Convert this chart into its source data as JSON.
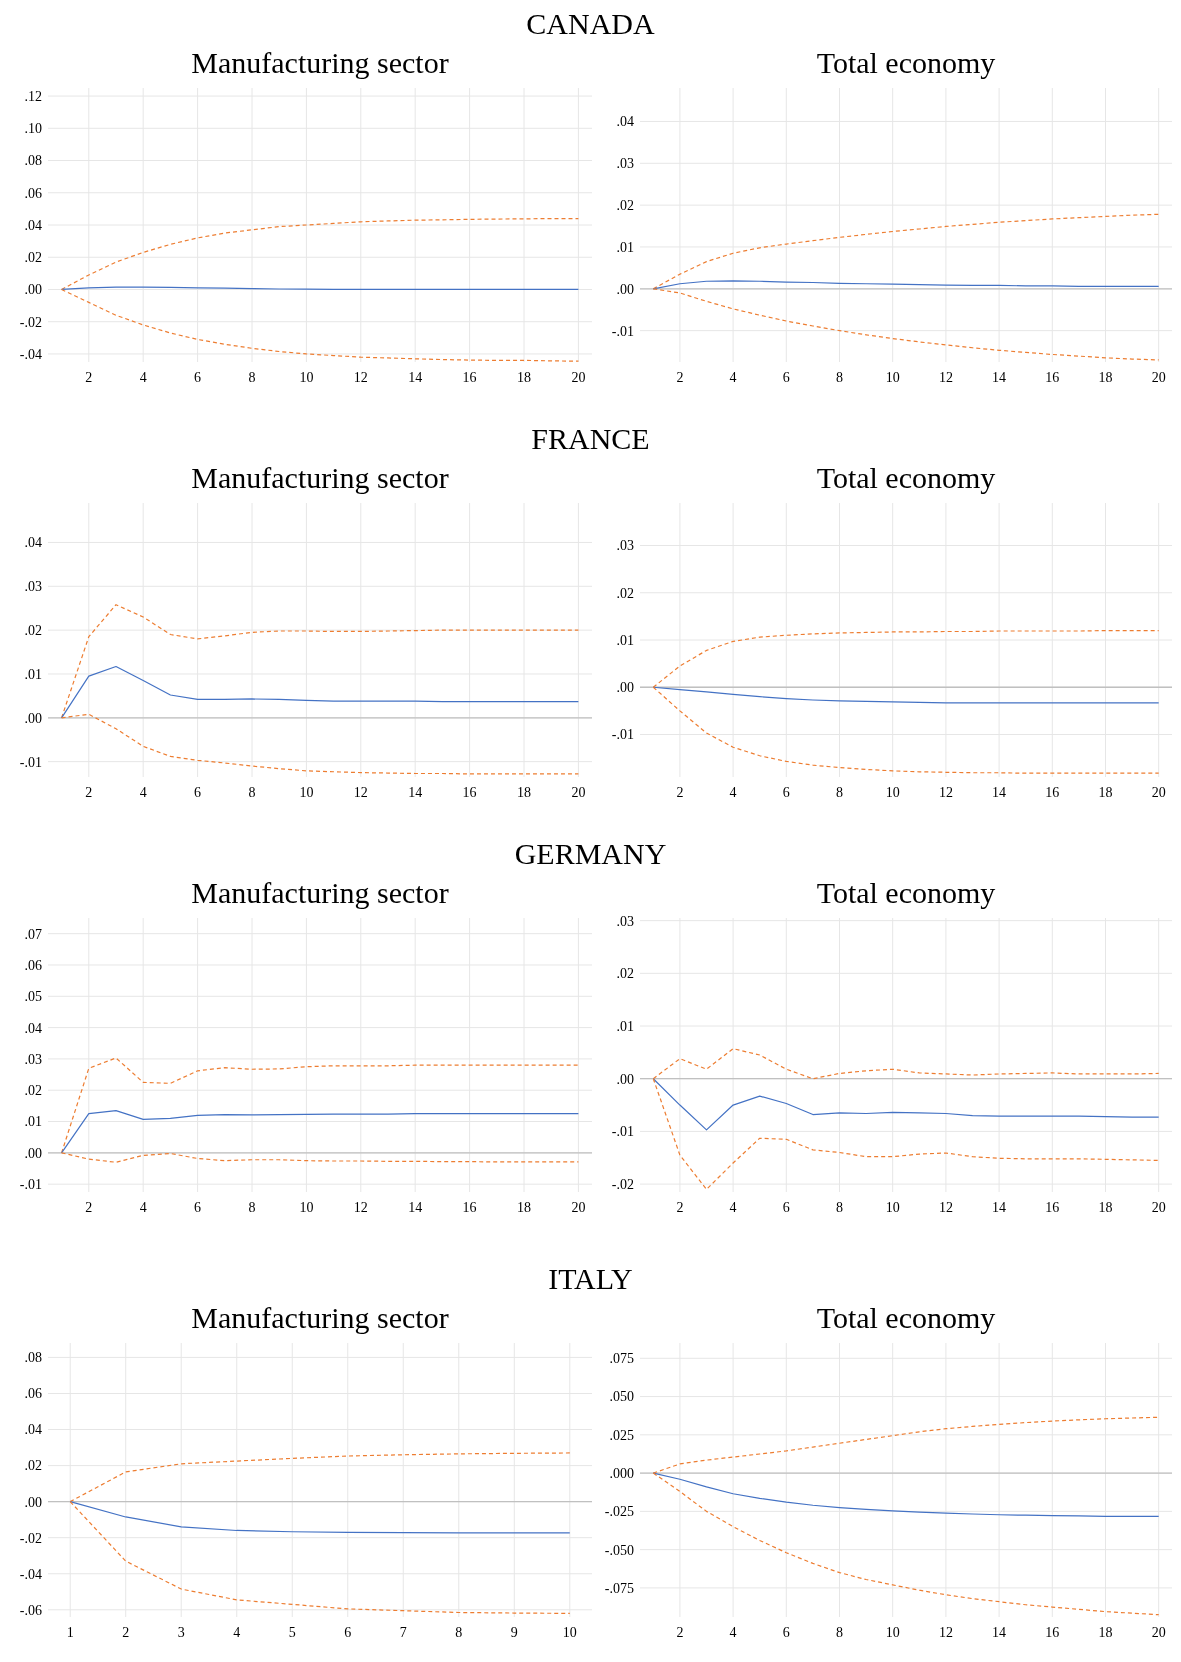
{
  "chart_data": [
    {
      "type": "line",
      "title": "Manufacturing sector",
      "annotations": [
        "CANADA"
      ],
      "x": [
        1,
        2,
        3,
        4,
        5,
        6,
        7,
        8,
        9,
        10,
        11,
        12,
        13,
        14,
        15,
        16,
        17,
        18,
        19,
        20
      ],
      "xlim": [
        0.5,
        20.5
      ],
      "xticks": [
        2,
        4,
        6,
        8,
        10,
        12,
        14,
        16,
        18,
        20
      ],
      "ylim": [
        -0.045,
        0.125
      ],
      "yticks": [
        {
          "value": -0.04,
          "label": "-.04"
        },
        {
          "value": -0.02,
          "label": "-.02"
        },
        {
          "value": 0,
          "label": ".00"
        },
        {
          "value": 0.02,
          "label": ".02"
        },
        {
          "value": 0.04,
          "label": ".04"
        },
        {
          "value": 0.06,
          "label": ".06"
        },
        {
          "value": 0.08,
          "label": ".08"
        },
        {
          "value": 0.1,
          "label": ".10"
        },
        {
          "value": 0.12,
          "label": ".12"
        }
      ],
      "grid": true,
      "series": [
        {
          "color": "#ed7d31",
          "line_style": "dashed",
          "values": [
            0,
            0.009,
            0.017,
            0.023,
            0.028,
            0.032,
            0.035,
            0.037,
            0.039,
            0.04,
            0.041,
            0.042,
            0.0425,
            0.043,
            0.0432,
            0.0435,
            0.0437,
            0.0438,
            0.044,
            0.044
          ]
        },
        {
          "color": "#4472c4",
          "line_style": "solid",
          "values": [
            0,
            0.001,
            0.0015,
            0.0015,
            0.0013,
            0.001,
            0.0008,
            0.0005,
            0.0003,
            0.0002,
            0.0001,
            0,
            0,
            0,
            0,
            0,
            0,
            0,
            0,
            0
          ]
        },
        {
          "color": "#ed7d31",
          "line_style": "dashed",
          "values": [
            0,
            -0.008,
            -0.016,
            -0.022,
            -0.027,
            -0.031,
            -0.034,
            -0.0365,
            -0.0385,
            -0.04,
            -0.041,
            -0.042,
            -0.0425,
            -0.043,
            -0.0435,
            -0.0438,
            -0.044,
            -0.044,
            -0.0443,
            -0.0445
          ]
        }
      ]
    },
    {
      "type": "line",
      "title": "Total economy",
      "x": [
        1,
        2,
        3,
        4,
        5,
        6,
        7,
        8,
        9,
        10,
        11,
        12,
        13,
        14,
        15,
        16,
        17,
        18,
        19,
        20
      ],
      "xlim": [
        0.5,
        20.5
      ],
      "xticks": [
        2,
        4,
        6,
        8,
        10,
        12,
        14,
        16,
        18,
        20
      ],
      "ylim": [
        -0.0175,
        0.048
      ],
      "yticks": [
        {
          "value": -0.01,
          "label": "-.01"
        },
        {
          "value": 0,
          "label": ".00"
        },
        {
          "value": 0.01,
          "label": ".01"
        },
        {
          "value": 0.02,
          "label": ".02"
        },
        {
          "value": 0.03,
          "label": ".03"
        },
        {
          "value": 0.04,
          "label": ".04"
        }
      ],
      "grid": true,
      "ref_lines": [
        {
          "axis": "y",
          "value": 0,
          "color": "#c0c0c0"
        }
      ],
      "series": [
        {
          "color": "#ed7d31",
          "line_style": "dashed",
          "values": [
            0,
            0.0035,
            0.0065,
            0.0085,
            0.0098,
            0.0107,
            0.0115,
            0.0123,
            0.013,
            0.0137,
            0.0143,
            0.0149,
            0.0154,
            0.0159,
            0.0163,
            0.0167,
            0.017,
            0.0173,
            0.0176,
            0.0178
          ]
        },
        {
          "color": "#4472c4",
          "line_style": "solid",
          "values": [
            0,
            0.0012,
            0.0018,
            0.0019,
            0.0018,
            0.0016,
            0.0015,
            0.0013,
            0.0012,
            0.0011,
            0.001,
            0.0009,
            0.0008,
            0.0008,
            0.0007,
            0.0007,
            0.0006,
            0.0006,
            0.0006,
            0.0006
          ]
        },
        {
          "color": "#ed7d31",
          "line_style": "dashed",
          "values": [
            0,
            -0.001,
            -0.003,
            -0.0048,
            -0.0063,
            -0.0077,
            -0.0089,
            -0.01,
            -0.011,
            -0.0119,
            -0.0127,
            -0.0134,
            -0.0141,
            -0.0147,
            -0.0152,
            -0.0157,
            -0.0161,
            -0.0165,
            -0.0168,
            -0.017
          ]
        }
      ]
    },
    {
      "type": "line",
      "title": "Manufacturing sector",
      "annotations": [
        "FRANCE"
      ],
      "x": [
        1,
        2,
        3,
        4,
        5,
        6,
        7,
        8,
        9,
        10,
        11,
        12,
        13,
        14,
        15,
        16,
        17,
        18,
        19,
        20
      ],
      "xlim": [
        0.5,
        20.5
      ],
      "xticks": [
        2,
        4,
        6,
        8,
        10,
        12,
        14,
        16,
        18,
        20
      ],
      "ylim": [
        -0.0135,
        0.049
      ],
      "yticks": [
        {
          "value": -0.01,
          "label": "-.01"
        },
        {
          "value": 0,
          "label": ".00"
        },
        {
          "value": 0.01,
          "label": ".01"
        },
        {
          "value": 0.02,
          "label": ".02"
        },
        {
          "value": 0.03,
          "label": ".03"
        },
        {
          "value": 0.04,
          "label": ".04"
        }
      ],
      "grid": true,
      "ref_lines": [
        {
          "axis": "y",
          "value": 0,
          "color": "#c0c0c0"
        }
      ],
      "series": [
        {
          "color": "#ed7d31",
          "line_style": "dashed",
          "values": [
            0,
            0.0185,
            0.0258,
            0.023,
            0.019,
            0.018,
            0.0187,
            0.0195,
            0.0198,
            0.0198,
            0.0197,
            0.0197,
            0.0198,
            0.0199,
            0.02,
            0.02,
            0.02,
            0.02,
            0.02,
            0.02
          ]
        },
        {
          "color": "#4472c4",
          "line_style": "solid",
          "values": [
            0,
            0.0095,
            0.0117,
            0.0085,
            0.0052,
            0.0042,
            0.0042,
            0.0043,
            0.0042,
            0.004,
            0.0038,
            0.0038,
            0.0038,
            0.0038,
            0.0037,
            0.0037,
            0.0037,
            0.0037,
            0.0037,
            0.0037
          ]
        },
        {
          "color": "#ed7d31",
          "line_style": "dashed",
          "values": [
            0,
            0.0008,
            -0.0025,
            -0.0065,
            -0.0088,
            -0.0097,
            -0.0103,
            -0.011,
            -0.0116,
            -0.0121,
            -0.0123,
            -0.0125,
            -0.0126,
            -0.0127,
            -0.0127,
            -0.0128,
            -0.0128,
            -0.0128,
            -0.0128,
            -0.0128
          ]
        }
      ]
    },
    {
      "type": "line",
      "title": "Total economy",
      "x": [
        1,
        2,
        3,
        4,
        5,
        6,
        7,
        8,
        9,
        10,
        11,
        12,
        13,
        14,
        15,
        16,
        17,
        18,
        19,
        20
      ],
      "xlim": [
        0.5,
        20.5
      ],
      "xticks": [
        2,
        4,
        6,
        8,
        10,
        12,
        14,
        16,
        18,
        20
      ],
      "ylim": [
        -0.019,
        0.039
      ],
      "yticks": [
        {
          "value": -0.01,
          "label": "-.01"
        },
        {
          "value": 0,
          "label": ".00"
        },
        {
          "value": 0.01,
          "label": ".01"
        },
        {
          "value": 0.02,
          "label": ".02"
        },
        {
          "value": 0.03,
          "label": ".03"
        }
      ],
      "grid": true,
      "ref_lines": [
        {
          "axis": "y",
          "value": 0,
          "color": "#c0c0c0"
        }
      ],
      "series": [
        {
          "color": "#ed7d31",
          "line_style": "dashed",
          "values": [
            0,
            0.0045,
            0.0078,
            0.0097,
            0.0106,
            0.011,
            0.0113,
            0.0115,
            0.0116,
            0.0117,
            0.0117,
            0.0118,
            0.0118,
            0.0119,
            0.0119,
            0.0119,
            0.0119,
            0.012,
            0.012,
            0.012
          ]
        },
        {
          "color": "#4472c4",
          "line_style": "solid",
          "values": [
            0,
            -0.0005,
            -0.001,
            -0.0015,
            -0.002,
            -0.0024,
            -0.0027,
            -0.0029,
            -0.003,
            -0.0031,
            -0.0032,
            -0.0033,
            -0.0033,
            -0.0033,
            -0.0033,
            -0.0033,
            -0.0033,
            -0.0033,
            -0.0033,
            -0.0033
          ]
        },
        {
          "color": "#ed7d31",
          "line_style": "dashed",
          "values": [
            0,
            -0.005,
            -0.0097,
            -0.0127,
            -0.0145,
            -0.0157,
            -0.0165,
            -0.017,
            -0.0174,
            -0.0177,
            -0.0179,
            -0.018,
            -0.0181,
            -0.0181,
            -0.0182,
            -0.0182,
            -0.0182,
            -0.0182,
            -0.0182,
            -0.0182
          ]
        }
      ]
    },
    {
      "type": "line",
      "title": "Manufacturing sector",
      "annotations": [
        "GERMANY"
      ],
      "x": [
        1,
        2,
        3,
        4,
        5,
        6,
        7,
        8,
        9,
        10,
        11,
        12,
        13,
        14,
        15,
        16,
        17,
        18,
        19,
        20
      ],
      "xlim": [
        0.5,
        20.5
      ],
      "xticks": [
        2,
        4,
        6,
        8,
        10,
        12,
        14,
        16,
        18,
        20
      ],
      "ylim": [
        -0.0125,
        0.075
      ],
      "yticks": [
        {
          "value": -0.01,
          "label": "-.01"
        },
        {
          "value": 0,
          "label": ".00"
        },
        {
          "value": 0.01,
          "label": ".01"
        },
        {
          "value": 0.02,
          "label": ".02"
        },
        {
          "value": 0.03,
          "label": ".03"
        },
        {
          "value": 0.04,
          "label": ".04"
        },
        {
          "value": 0.05,
          "label": ".05"
        },
        {
          "value": 0.06,
          "label": ".06"
        },
        {
          "value": 0.07,
          "label": ".07"
        }
      ],
      "grid": true,
      "ref_lines": [
        {
          "axis": "y",
          "value": 0,
          "color": "#c0c0c0"
        }
      ],
      "series": [
        {
          "color": "#ed7d31",
          "line_style": "dashed",
          "values": [
            0,
            0.027,
            0.0303,
            0.0225,
            0.0222,
            0.0262,
            0.0272,
            0.0267,
            0.0268,
            0.0275,
            0.0278,
            0.0278,
            0.0278,
            0.028,
            0.028,
            0.028,
            0.028,
            0.028,
            0.028,
            0.028
          ]
        },
        {
          "color": "#4472c4",
          "line_style": "solid",
          "values": [
            0,
            0.0125,
            0.0135,
            0.0107,
            0.011,
            0.012,
            0.0122,
            0.0121,
            0.0122,
            0.0123,
            0.0124,
            0.0124,
            0.0124,
            0.0125,
            0.0125,
            0.0125,
            0.0125,
            0.0125,
            0.0125,
            0.0125
          ]
        },
        {
          "color": "#ed7d31",
          "line_style": "dashed",
          "values": [
            0,
            -0.002,
            -0.003,
            -0.0008,
            -0.0002,
            -0.0018,
            -0.0025,
            -0.0022,
            -0.0022,
            -0.0025,
            -0.0026,
            -0.0026,
            -0.0027,
            -0.0027,
            -0.0028,
            -0.0028,
            -0.0029,
            -0.0029,
            -0.0029,
            -0.0029
          ]
        }
      ]
    },
    {
      "type": "line",
      "title": "Total economy",
      "x": [
        1,
        2,
        3,
        4,
        5,
        6,
        7,
        8,
        9,
        10,
        11,
        12,
        13,
        14,
        15,
        16,
        17,
        18,
        19,
        20
      ],
      "xlim": [
        0.5,
        20.5
      ],
      "xticks": [
        2,
        4,
        6,
        8,
        10,
        12,
        14,
        16,
        18,
        20
      ],
      "ylim": [
        -0.0215,
        0.0305
      ],
      "yticks": [
        {
          "value": -0.02,
          "label": "-.02"
        },
        {
          "value": -0.01,
          "label": "-.01"
        },
        {
          "value": 0,
          "label": ".00"
        },
        {
          "value": 0.01,
          "label": ".01"
        },
        {
          "value": 0.02,
          "label": ".02"
        },
        {
          "value": 0.03,
          "label": ".03"
        }
      ],
      "grid": true,
      "ref_lines": [
        {
          "axis": "y",
          "value": 0,
          "color": "#c0c0c0"
        }
      ],
      "series": [
        {
          "color": "#ed7d31",
          "line_style": "dashed",
          "values": [
            0,
            0.0038,
            0.0018,
            0.0057,
            0.0045,
            0.0018,
            0,
            0.001,
            0.0015,
            0.0018,
            0.0011,
            0.0009,
            0.0007,
            0.0009,
            0.001,
            0.0011,
            0.0009,
            0.0009,
            0.0009,
            0.001
          ]
        },
        {
          "color": "#4472c4",
          "line_style": "solid",
          "values": [
            0,
            -0.005,
            -0.0097,
            -0.005,
            -0.0033,
            -0.0047,
            -0.0068,
            -0.0065,
            -0.0066,
            -0.0064,
            -0.0065,
            -0.0066,
            -0.007,
            -0.0071,
            -0.0071,
            -0.0071,
            -0.0071,
            -0.0072,
            -0.0073,
            -0.0073
          ]
        },
        {
          "color": "#ed7d31",
          "line_style": "dashed",
          "values": [
            0,
            -0.0145,
            -0.021,
            -0.016,
            -0.0113,
            -0.0115,
            -0.0135,
            -0.014,
            -0.0148,
            -0.0148,
            -0.0143,
            -0.0141,
            -0.0148,
            -0.0151,
            -0.0152,
            -0.0152,
            -0.0152,
            -0.0153,
            -0.0154,
            -0.0155
          ]
        }
      ]
    },
    {
      "type": "line",
      "title": "Manufacturing sector",
      "annotations": [
        "ITALY"
      ],
      "x": [
        1,
        2,
        3,
        4,
        5,
        6,
        7,
        8,
        9,
        10
      ],
      "xlim": [
        0.6,
        10.4
      ],
      "xticks": [
        1,
        2,
        3,
        4,
        5,
        6,
        7,
        8,
        9,
        10
      ],
      "ylim": [
        -0.064,
        0.088
      ],
      "yticks": [
        {
          "value": -0.06,
          "label": "-.06"
        },
        {
          "value": -0.04,
          "label": "-.04"
        },
        {
          "value": -0.02,
          "label": "-.02"
        },
        {
          "value": 0,
          "label": ".00"
        },
        {
          "value": 0.02,
          "label": ".02"
        },
        {
          "value": 0.04,
          "label": ".04"
        },
        {
          "value": 0.06,
          "label": ".06"
        },
        {
          "value": 0.08,
          "label": ".08"
        }
      ],
      "grid": true,
      "ref_lines": [
        {
          "axis": "y",
          "value": 0,
          "color": "#c0c0c0"
        }
      ],
      "series": [
        {
          "color": "#ed7d31",
          "line_style": "dashed",
          "values": [
            0,
            0.0165,
            0.021,
            0.0225,
            0.024,
            0.0253,
            0.026,
            0.0265,
            0.0268,
            0.027
          ]
        },
        {
          "color": "#4472c4",
          "line_style": "solid",
          "values": [
            0,
            -0.0085,
            -0.014,
            -0.016,
            -0.0167,
            -0.017,
            -0.0172,
            -0.0173,
            -0.0173,
            -0.0173
          ]
        },
        {
          "color": "#ed7d31",
          "line_style": "dashed",
          "values": [
            0,
            -0.033,
            -0.0485,
            -0.0545,
            -0.057,
            -0.0595,
            -0.0605,
            -0.0615,
            -0.0618,
            -0.062
          ]
        }
      ]
    },
    {
      "type": "line",
      "title": "Total economy",
      "x": [
        1,
        2,
        3,
        4,
        5,
        6,
        7,
        8,
        9,
        10,
        11,
        12,
        13,
        14,
        15,
        16,
        17,
        18,
        19,
        20
      ],
      "xlim": [
        0.5,
        20.5
      ],
      "xticks": [
        2,
        4,
        6,
        8,
        10,
        12,
        14,
        16,
        18,
        20
      ],
      "ylim": [
        -0.094,
        0.085
      ],
      "yticks": [
        {
          "value": -0.075,
          "label": "-.075"
        },
        {
          "value": -0.05,
          "label": "-.050"
        },
        {
          "value": -0.025,
          "label": "-.025"
        },
        {
          "value": 0,
          "label": ".000"
        },
        {
          "value": 0.025,
          "label": ".025"
        },
        {
          "value": 0.05,
          "label": ".050"
        },
        {
          "value": 0.075,
          "label": ".075"
        }
      ],
      "grid": true,
      "ref_lines": [
        {
          "axis": "y",
          "value": 0,
          "color": "#c0c0c0"
        }
      ],
      "series": [
        {
          "color": "#ed7d31",
          "line_style": "dashed",
          "values": [
            0,
            0.006,
            0.0085,
            0.0105,
            0.0125,
            0.0145,
            0.017,
            0.0195,
            0.022,
            0.0245,
            0.027,
            0.029,
            0.0305,
            0.0318,
            0.033,
            0.034,
            0.0348,
            0.0355,
            0.036,
            0.0365
          ]
        },
        {
          "color": "#4472c4",
          "line_style": "solid",
          "values": [
            0,
            -0.004,
            -0.009,
            -0.0135,
            -0.0165,
            -0.019,
            -0.021,
            -0.0225,
            -0.0237,
            -0.0247,
            -0.0255,
            -0.0262,
            -0.0267,
            -0.0272,
            -0.0275,
            -0.0278,
            -0.028,
            -0.0282,
            -0.0283,
            -0.0283
          ]
        },
        {
          "color": "#ed7d31",
          "line_style": "dashed",
          "values": [
            0,
            -0.012,
            -0.025,
            -0.035,
            -0.044,
            -0.052,
            -0.059,
            -0.065,
            -0.0695,
            -0.073,
            -0.0765,
            -0.0795,
            -0.082,
            -0.084,
            -0.086,
            -0.0875,
            -0.089,
            -0.0905,
            -0.0915,
            -0.0925
          ]
        }
      ]
    }
  ]
}
